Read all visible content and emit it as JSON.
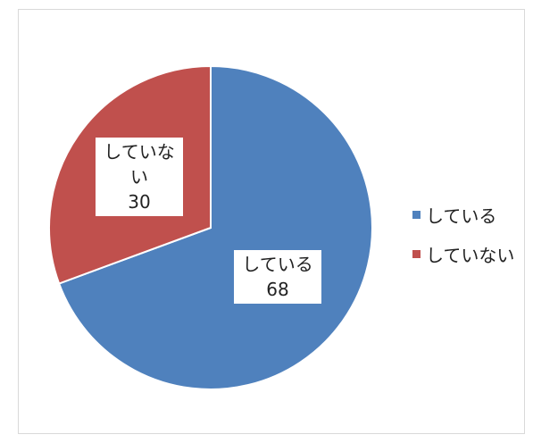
{
  "chart_data": {
    "type": "pie",
    "categories": [
      "している",
      "していない"
    ],
    "values": [
      68,
      30
    ],
    "colors": [
      "#4f81bd",
      "#c0504d"
    ],
    "data_labels": [
      {
        "category": "している",
        "value": "68"
      },
      {
        "category": "していない",
        "value": "30"
      }
    ],
    "legend": {
      "position": "right",
      "entries": [
        "している",
        "していない"
      ]
    },
    "title": ""
  }
}
